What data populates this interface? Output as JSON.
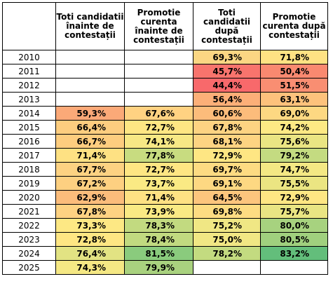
{
  "table": {
    "headers": [
      "",
      "Toti candidatii înainte de contestații",
      "Promotie curenta înainte de contestații",
      "Toti candidatii după contestații",
      "Promotie curenta după contestații"
    ],
    "rows": [
      {
        "year": "2010",
        "cells": [
          {
            "v": "",
            "bg": "#ffffff"
          },
          {
            "v": "",
            "bg": "#ffffff"
          },
          {
            "v": "69,3%",
            "bg": "#fbd683"
          },
          {
            "v": "71,8%",
            "bg": "#fee283"
          }
        ]
      },
      {
        "year": "2011",
        "cells": [
          {
            "v": "",
            "bg": "#ffffff"
          },
          {
            "v": "",
            "bg": "#ffffff"
          },
          {
            "v": "45,7%",
            "bg": "#f8746d"
          },
          {
            "v": "50,4%",
            "bg": "#f98970"
          }
        ]
      },
      {
        "year": "2012",
        "cells": [
          {
            "v": "",
            "bg": "#ffffff"
          },
          {
            "v": "",
            "bg": "#ffffff"
          },
          {
            "v": "44,4%",
            "bg": "#f8696b"
          },
          {
            "v": "51,5%",
            "bg": "#f98e72"
          }
        ]
      },
      {
        "year": "2013",
        "cells": [
          {
            "v": "",
            "bg": "#ffffff"
          },
          {
            "v": "",
            "bg": "#ffffff"
          },
          {
            "v": "56,4%",
            "bg": "#fcaf78"
          },
          {
            "v": "63,1%",
            "bg": "#fdc27c"
          }
        ]
      },
      {
        "year": "2014",
        "cells": [
          {
            "v": "59,3%",
            "bg": "#fba978"
          },
          {
            "v": "67,6%",
            "bg": "#ffd282"
          },
          {
            "v": "60,6%",
            "bg": "#fcbc7b"
          },
          {
            "v": "69,0%",
            "bg": "#fdd882"
          }
        ]
      },
      {
        "year": "2015",
        "cells": [
          {
            "v": "66,4%",
            "bg": "#fdcd7f"
          },
          {
            "v": "72,7%",
            "bg": "#fee683"
          },
          {
            "v": "67,8%",
            "bg": "#fdd382"
          },
          {
            "v": "74,2%",
            "bg": "#fde984"
          }
        ]
      },
      {
        "year": "2016",
        "cells": [
          {
            "v": "66,7%",
            "bg": "#fdcd7f"
          },
          {
            "v": "74,1%",
            "bg": "#f7e885"
          },
          {
            "v": "68,1%",
            "bg": "#fdd482"
          },
          {
            "v": "75,6%",
            "bg": "#eae583"
          }
        ]
      },
      {
        "year": "2017",
        "cells": [
          {
            "v": "71,4%",
            "bg": "#fee183"
          },
          {
            "v": "77,8%",
            "bg": "#c8dc80"
          },
          {
            "v": "72,9%",
            "bg": "#fee683"
          },
          {
            "v": "79,2%",
            "bg": "#c4db81"
          }
        ]
      },
      {
        "year": "2018",
        "cells": [
          {
            "v": "67,7%",
            "bg": "#fdd282"
          },
          {
            "v": "72,7%",
            "bg": "#fee683"
          },
          {
            "v": "69,7%",
            "bg": "#fddb82"
          },
          {
            "v": "74,7%",
            "bg": "#f4e884"
          }
        ]
      },
      {
        "year": "2019",
        "cells": [
          {
            "v": "67,2%",
            "bg": "#fdd081"
          },
          {
            "v": "73,7%",
            "bg": "#faea84"
          },
          {
            "v": "69,1%",
            "bg": "#fdd882"
          },
          {
            "v": "75,5%",
            "bg": "#ebe582"
          }
        ]
      },
      {
        "year": "2020",
        "cells": [
          {
            "v": "62,9%",
            "bg": "#fbbc7b"
          },
          {
            "v": "71,4%",
            "bg": "#fee183"
          },
          {
            "v": "64,5%",
            "bg": "#fcc57d"
          },
          {
            "v": "72,9%",
            "bg": "#fee683"
          }
        ]
      },
      {
        "year": "2021",
        "cells": [
          {
            "v": "67,8%",
            "bg": "#fdd282"
          },
          {
            "v": "73,9%",
            "bg": "#f9ea84"
          },
          {
            "v": "69,8%",
            "bg": "#fddc82"
          },
          {
            "v": "75,7%",
            "bg": "#e9e583"
          }
        ]
      },
      {
        "year": "2022",
        "cells": [
          {
            "v": "73,3%",
            "bg": "#fde884"
          },
          {
            "v": "78,3%",
            "bg": "#c2da80"
          },
          {
            "v": "75,2%",
            "bg": "#f0e784"
          },
          {
            "v": "80,0%",
            "bg": "#a7d27f"
          }
        ]
      },
      {
        "year": "2023",
        "cells": [
          {
            "v": "72,8%",
            "bg": "#fee683"
          },
          {
            "v": "78,4%",
            "bg": "#c1da80"
          },
          {
            "v": "75,0%",
            "bg": "#f1e784"
          },
          {
            "v": "80,5%",
            "bg": "#a0d07e"
          }
        ]
      },
      {
        "year": "2024",
        "cells": [
          {
            "v": "76,4%",
            "bg": "#e2e383"
          },
          {
            "v": "81,5%",
            "bg": "#8acb7d"
          },
          {
            "v": "78,2%",
            "bg": "#c3db80"
          },
          {
            "v": "83,2%",
            "bg": "#63be7b"
          }
        ]
      },
      {
        "year": "2025",
        "cells": [
          {
            "v": "74,3%",
            "bg": "#f5e884"
          },
          {
            "v": "79,9%",
            "bg": "#a9d27f"
          },
          {
            "v": "",
            "bg": "#ffffff"
          },
          {
            "v": "",
            "bg": "#ffffff"
          }
        ]
      }
    ]
  }
}
